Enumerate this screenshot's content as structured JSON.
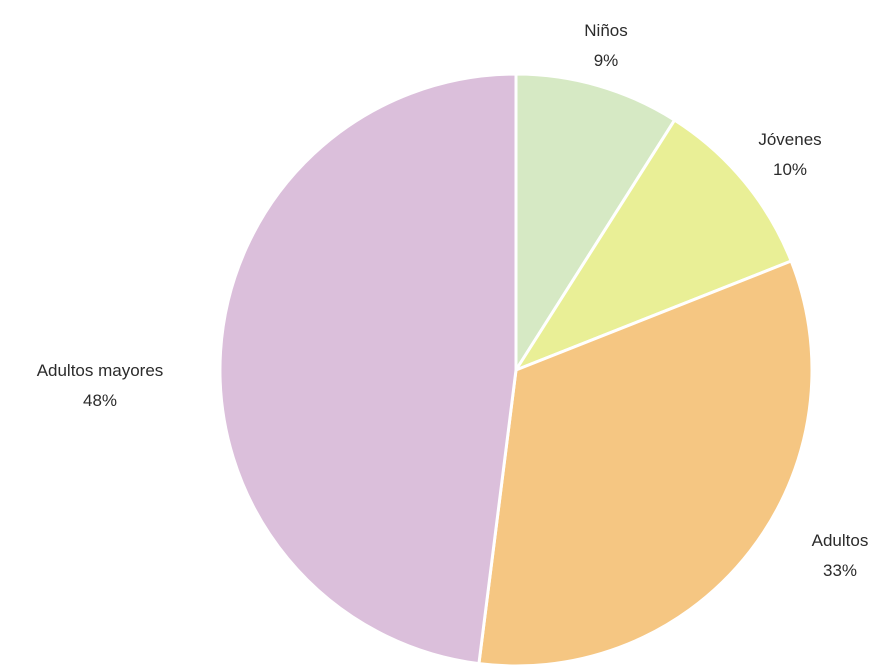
{
  "chart_data": {
    "type": "pie",
    "slices": [
      {
        "label": "Niños",
        "value": 9,
        "display": "9%",
        "color": "#d6e9c4"
      },
      {
        "label": "Jóvenes",
        "value": 10,
        "display": "10%",
        "color": "#e9ef96"
      },
      {
        "label": "Adultos",
        "value": 33,
        "display": "33%",
        "color": "#f5c682"
      },
      {
        "label": "Adultos mayores",
        "value": 48,
        "display": "48%",
        "color": "#dbbfdb"
      }
    ],
    "start_angle_deg": 0,
    "direction": "clockwise",
    "legend": "none"
  }
}
